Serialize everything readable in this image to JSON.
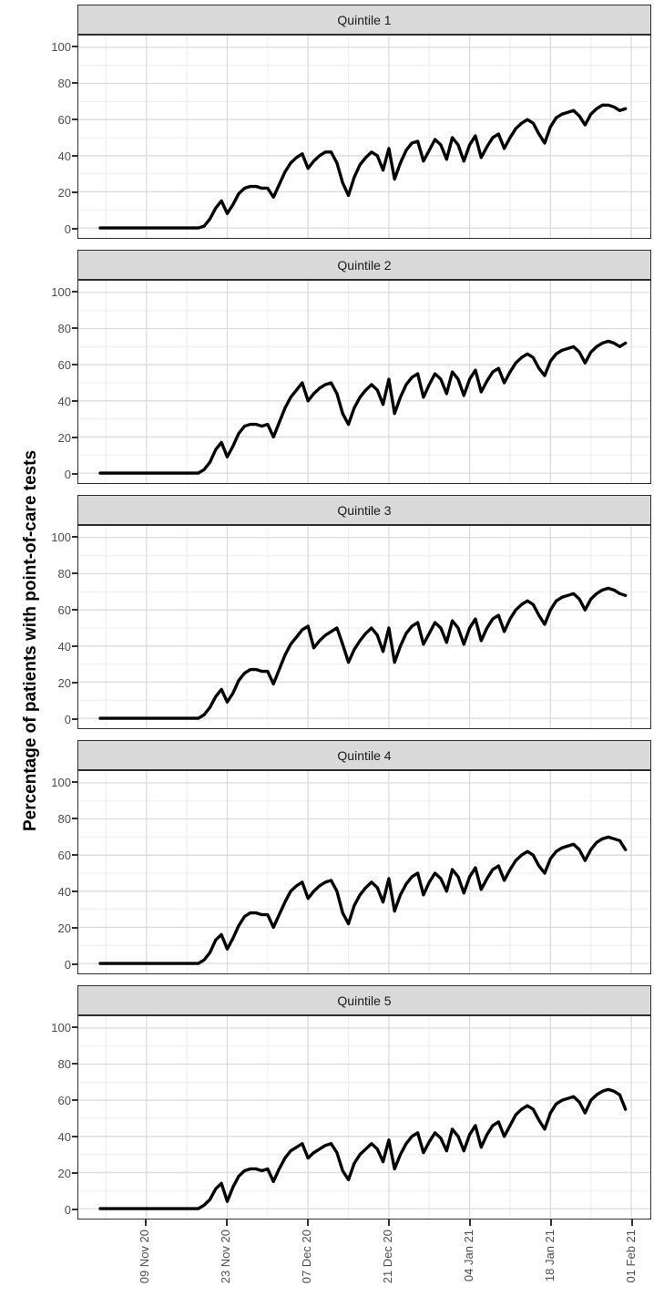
{
  "chart_data": {
    "type": "line",
    "title": "",
    "ylabel": "Percentage of patients with point-of-care tests",
    "xlabel": "",
    "ylim": [
      0,
      100
    ],
    "y_ticks": [
      0,
      20,
      40,
      60,
      80,
      100
    ],
    "y_minor": [
      10,
      30,
      50,
      70,
      90
    ],
    "x_start_date": "2020-11-01",
    "x_tick_labels": [
      "09 Nov 20",
      "23 Nov 20",
      "07 Dec 20",
      "21 Dec 20",
      "04 Jan 21",
      "18 Jan 21",
      "01 Feb 21"
    ],
    "x_tick_days": [
      8,
      22,
      36,
      50,
      64,
      78,
      92
    ],
    "x_minor_days": [
      1,
      15,
      29,
      43,
      57,
      71,
      85
    ],
    "grid": true,
    "legend_position": "none",
    "facet_layout": "rows",
    "series": [
      {
        "name": "Quintile 1",
        "values": [
          0,
          0,
          0,
          0,
          0,
          0,
          0,
          0,
          0,
          0,
          0,
          0,
          0,
          0,
          0,
          0,
          0,
          0,
          1,
          5,
          11,
          15,
          8,
          13,
          19,
          22,
          23,
          23,
          22,
          22,
          17,
          24,
          31,
          36,
          39,
          41,
          33,
          37,
          40,
          42,
          42,
          36,
          25,
          18,
          28,
          35,
          39,
          42,
          40,
          32,
          44,
          27,
          36,
          43,
          47,
          48,
          37,
          43,
          49,
          46,
          38,
          50,
          46,
          37,
          46,
          51,
          39,
          45,
          50,
          52,
          44,
          50,
          55,
          58,
          60,
          58,
          52,
          47,
          56,
          61,
          63,
          64,
          65,
          62,
          57,
          63,
          66,
          68,
          68,
          67,
          65,
          66
        ]
      },
      {
        "name": "Quintile 2",
        "values": [
          0,
          0,
          0,
          0,
          0,
          0,
          0,
          0,
          0,
          0,
          0,
          0,
          0,
          0,
          0,
          0,
          0,
          0,
          2,
          6,
          13,
          17,
          9,
          15,
          22,
          26,
          27,
          27,
          26,
          27,
          20,
          28,
          36,
          42,
          46,
          50,
          40,
          44,
          47,
          49,
          50,
          44,
          33,
          27,
          36,
          42,
          46,
          49,
          46,
          38,
          52,
          33,
          42,
          49,
          53,
          55,
          42,
          49,
          55,
          52,
          44,
          56,
          52,
          43,
          52,
          57,
          45,
          51,
          56,
          58,
          50,
          56,
          61,
          64,
          66,
          64,
          58,
          54,
          62,
          66,
          68,
          69,
          70,
          67,
          61,
          67,
          70,
          72,
          73,
          72,
          70,
          72
        ]
      },
      {
        "name": "Quintile 3",
        "values": [
          0,
          0,
          0,
          0,
          0,
          0,
          0,
          0,
          0,
          0,
          0,
          0,
          0,
          0,
          0,
          0,
          0,
          0,
          2,
          6,
          12,
          16,
          9,
          14,
          21,
          25,
          27,
          27,
          26,
          26,
          19,
          27,
          35,
          41,
          45,
          49,
          51,
          39,
          43,
          46,
          48,
          50,
          41,
          31,
          38,
          43,
          47,
          50,
          46,
          37,
          50,
          31,
          40,
          47,
          51,
          53,
          41,
          47,
          53,
          50,
          42,
          54,
          50,
          41,
          50,
          55,
          43,
          50,
          55,
          57,
          48,
          55,
          60,
          63,
          65,
          63,
          57,
          52,
          60,
          65,
          67,
          68,
          69,
          66,
          60,
          66,
          69,
          71,
          72,
          71,
          69,
          68
        ]
      },
      {
        "name": "Quintile 4",
        "values": [
          0,
          0,
          0,
          0,
          0,
          0,
          0,
          0,
          0,
          0,
          0,
          0,
          0,
          0,
          0,
          0,
          0,
          0,
          2,
          6,
          13,
          16,
          8,
          14,
          21,
          26,
          28,
          28,
          27,
          27,
          20,
          27,
          34,
          40,
          43,
          45,
          36,
          40,
          43,
          45,
          46,
          40,
          28,
          22,
          32,
          38,
          42,
          45,
          42,
          34,
          47,
          29,
          38,
          44,
          48,
          50,
          38,
          45,
          50,
          47,
          40,
          52,
          48,
          39,
          48,
          53,
          41,
          47,
          52,
          54,
          46,
          52,
          57,
          60,
          62,
          60,
          54,
          50,
          58,
          62,
          64,
          65,
          66,
          63,
          57,
          63,
          67,
          69,
          70,
          69,
          68,
          63
        ]
      },
      {
        "name": "Quintile 5",
        "values": [
          0,
          0,
          0,
          0,
          0,
          0,
          0,
          0,
          0,
          0,
          0,
          0,
          0,
          0,
          0,
          0,
          0,
          0,
          2,
          5,
          11,
          14,
          4,
          12,
          18,
          21,
          22,
          22,
          21,
          22,
          15,
          22,
          28,
          32,
          34,
          36,
          28,
          31,
          33,
          35,
          36,
          31,
          21,
          16,
          25,
          30,
          33,
          36,
          33,
          26,
          38,
          22,
          30,
          36,
          40,
          42,
          31,
          37,
          42,
          39,
          32,
          44,
          40,
          32,
          41,
          46,
          34,
          41,
          46,
          48,
          40,
          46,
          52,
          55,
          57,
          55,
          49,
          44,
          53,
          58,
          60,
          61,
          62,
          59,
          53,
          60,
          63,
          65,
          66,
          65,
          63,
          55
        ]
      }
    ],
    "colors": {
      "line": "#000000",
      "strip_fill": "#d9d9d9",
      "panel_border": "#2e2e2e",
      "grid_major": "#dcdcdc",
      "grid_minor": "#eeeeee",
      "tick_label": "#4d4d4d"
    }
  }
}
